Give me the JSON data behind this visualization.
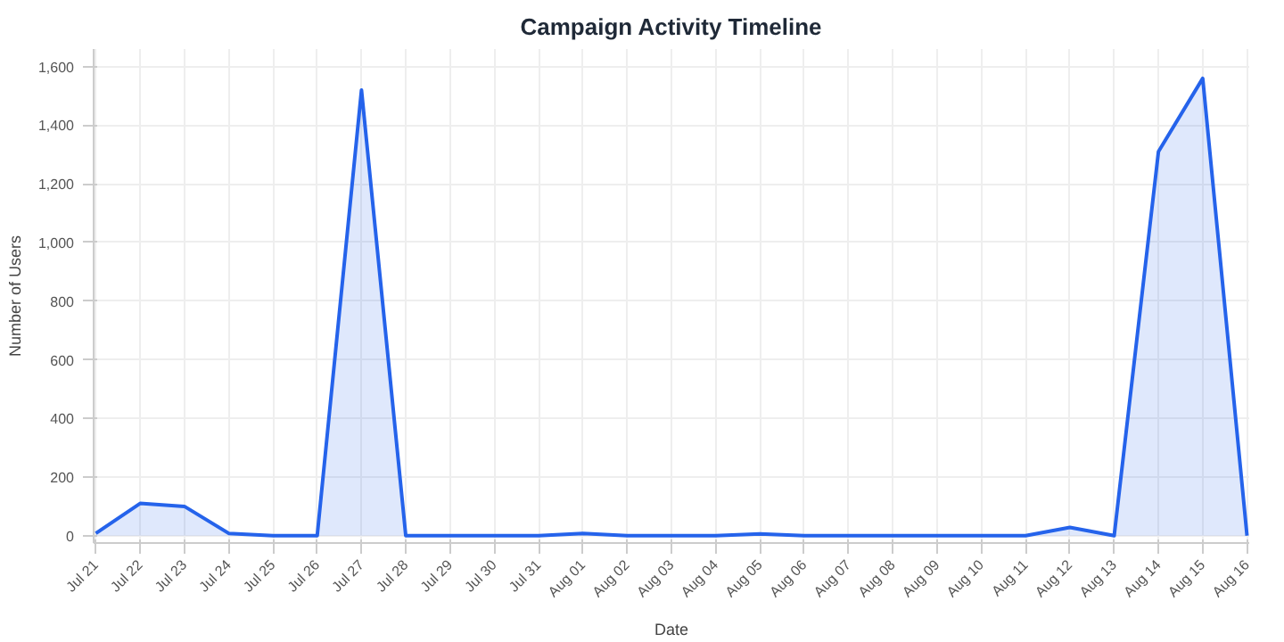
{
  "chart_data": {
    "type": "area",
    "title": "Campaign Activity Timeline",
    "xlabel": "Date",
    "ylabel": "Number of Users",
    "categories": [
      "Jul 21",
      "Jul 22",
      "Jul 23",
      "Jul 24",
      "Jul 25",
      "Jul 26",
      "Jul 27",
      "Jul 28",
      "Jul 29",
      "Jul 30",
      "Jul 31",
      "Aug 01",
      "Aug 02",
      "Aug 03",
      "Aug 04",
      "Aug 05",
      "Aug 06",
      "Aug 07",
      "Aug 08",
      "Aug 09",
      "Aug 10",
      "Aug 11",
      "Aug 12",
      "Aug 13",
      "Aug 14",
      "Aug 15",
      "Aug 16"
    ],
    "series": [
      {
        "color": "#2563eb",
        "values": [
          8,
          110,
          100,
          8,
          0,
          0,
          1520,
          0,
          0,
          0,
          0,
          8,
          0,
          0,
          0,
          6,
          0,
          0,
          0,
          0,
          0,
          0,
          28,
          0,
          1310,
          1560,
          0
        ]
      }
    ],
    "ylim": [
      -25,
      1660
    ],
    "yticks": [
      {
        "value": 0,
        "label": "0"
      },
      {
        "value": 200,
        "label": "200"
      },
      {
        "value": 400,
        "label": "400"
      },
      {
        "value": 600,
        "label": "600"
      },
      {
        "value": 800,
        "label": "800"
      },
      {
        "value": 1000,
        "label": "1,000"
      },
      {
        "value": 1200,
        "label": "1,200"
      },
      {
        "value": 1400,
        "label": "1,400"
      },
      {
        "value": 1600,
        "label": "1,600"
      }
    ],
    "grid": true,
    "marker": "none",
    "line_style": "solid"
  }
}
